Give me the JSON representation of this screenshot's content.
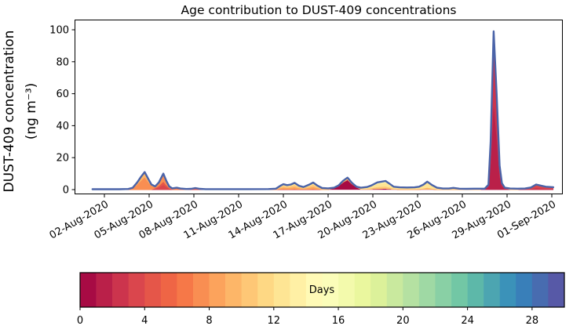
{
  "chart_data": {
    "type": "stacked_area",
    "title": "Age contribution to DUST-409 concentrations",
    "ylabel_line1": "DUST-409 concentration",
    "ylabel_line2": "(ng m⁻³)",
    "xlabel": "",
    "ylim": [
      0,
      100
    ],
    "y_ticks": [
      0,
      20,
      40,
      60,
      80,
      100
    ],
    "x_unit": "days since 01-Aug-2020 00:00",
    "x_ticks": [
      {
        "t": 1,
        "label": "02-Aug-2020"
      },
      {
        "t": 4,
        "label": "05-Aug-2020"
      },
      {
        "t": 7,
        "label": "08-Aug-2020"
      },
      {
        "t": 10,
        "label": "11-Aug-2020"
      },
      {
        "t": 13,
        "label": "14-Aug-2020"
      },
      {
        "t": 16,
        "label": "17-Aug-2020"
      },
      {
        "t": 19,
        "label": "20-Aug-2020"
      },
      {
        "t": 22,
        "label": "23-Aug-2020"
      },
      {
        "t": 25,
        "label": "26-Aug-2020"
      },
      {
        "t": 28,
        "label": "29-Aug-2020"
      },
      {
        "t": 31,
        "label": "01-Sep-2020"
      }
    ],
    "grid": false,
    "total_line_color": "#4a63a8",
    "value_unit": "ng m⁻³",
    "age_profiles": {
      "p_flat": {
        "9": 1.0
      },
      "p_peak1": {
        "7": 0.7,
        "9": 0.25,
        "12": 0.05
      },
      "p_peak2": {
        "3": 0.3,
        "4": 0.2,
        "7": 0.4,
        "9": 0.1
      },
      "p_aug7": {
        "6": 0.7,
        "9": 0.3
      },
      "p_aug8": {
        "4": 0.6,
        "6": 0.4
      },
      "p_mid": {
        "3": 0.08,
        "8": 0.32,
        "10": 0.3,
        "12": 0.3
      },
      "p_low": {
        "9": 0.5,
        "12": 0.5
      },
      "p_maroon": {
        "0": 0.82,
        "9": 0.12,
        "12": 0.06
      },
      "p_yellow": {
        "0": 0.12,
        "10": 0.25,
        "12": 0.43,
        "14": 0.2
      },
      "p_cream": {
        "0": 0.05,
        "9": 0.2,
        "12": 0.75
      },
      "p_tail": {
        "9": 0.3,
        "12": 0.7
      },
      "p_spike": {
        "1": 0.55,
        "2": 0.45
      },
      "p_last": {
        "2": 0.35,
        "3": 0.45,
        "5": 0.2
      }
    },
    "points": [
      [
        0.2,
        0.25,
        "p_flat"
      ],
      [
        1.0,
        0.25,
        "p_flat"
      ],
      [
        2.0,
        0.25,
        "p_flat"
      ],
      [
        2.6,
        0.4,
        "p_peak1"
      ],
      [
        2.9,
        1.2,
        "p_peak1"
      ],
      [
        3.2,
        4.5,
        "p_peak1"
      ],
      [
        3.45,
        8.0,
        "p_peak1"
      ],
      [
        3.7,
        11.0,
        "p_peak1"
      ],
      [
        3.95,
        6.5,
        "p_peak1"
      ],
      [
        4.15,
        3.2,
        "p_peak1"
      ],
      [
        4.4,
        2.0,
        "p_peak2"
      ],
      [
        4.65,
        4.5,
        "p_peak2"
      ],
      [
        4.95,
        10.0,
        "p_peak2"
      ],
      [
        5.15,
        5.5,
        "p_peak2"
      ],
      [
        5.35,
        2.0,
        "p_peak2"
      ],
      [
        5.55,
        0.8,
        "p_aug7"
      ],
      [
        5.85,
        1.2,
        "p_aug7"
      ],
      [
        6.1,
        0.7,
        "p_aug7"
      ],
      [
        6.5,
        0.4,
        "p_aug7"
      ],
      [
        6.8,
        0.5,
        "p_aug8"
      ],
      [
        7.1,
        1.0,
        "p_aug8"
      ],
      [
        7.4,
        0.5,
        "p_aug8"
      ],
      [
        7.8,
        0.3,
        "p_flat"
      ],
      [
        9.0,
        0.3,
        "p_flat"
      ],
      [
        10.5,
        0.3,
        "p_flat"
      ],
      [
        12.0,
        0.35,
        "p_mid"
      ],
      [
        12.5,
        0.6,
        "p_mid"
      ],
      [
        12.8,
        2.4,
        "p_mid"
      ],
      [
        13.0,
        3.4,
        "p_mid"
      ],
      [
        13.25,
        2.8,
        "p_mid"
      ],
      [
        13.5,
        3.2,
        "p_mid"
      ],
      [
        13.75,
        4.2,
        "p_mid"
      ],
      [
        14.05,
        2.4,
        "p_mid"
      ],
      [
        14.35,
        1.6,
        "p_mid"
      ],
      [
        14.7,
        3.0,
        "p_mid"
      ],
      [
        15.0,
        4.4,
        "p_mid"
      ],
      [
        15.3,
        2.4,
        "p_mid"
      ],
      [
        15.6,
        1.0,
        "p_low"
      ],
      [
        16.0,
        0.8,
        "p_low"
      ],
      [
        16.4,
        1.2,
        "p_maroon"
      ],
      [
        16.7,
        2.6,
        "p_maroon"
      ],
      [
        17.0,
        5.5,
        "p_maroon"
      ],
      [
        17.3,
        7.5,
        "p_maroon"
      ],
      [
        17.6,
        4.2,
        "p_maroon"
      ],
      [
        17.9,
        1.8,
        "p_maroon"
      ],
      [
        18.2,
        1.2,
        "p_yellow"
      ],
      [
        18.6,
        1.6,
        "p_yellow"
      ],
      [
        18.9,
        2.6,
        "p_yellow"
      ],
      [
        19.3,
        4.5,
        "p_yellow"
      ],
      [
        19.6,
        5.0,
        "p_yellow"
      ],
      [
        19.85,
        5.4,
        "p_yellow"
      ],
      [
        20.1,
        3.8,
        "p_yellow"
      ],
      [
        20.4,
        1.8,
        "p_yellow"
      ],
      [
        20.8,
        1.4,
        "p_cream"
      ],
      [
        21.3,
        1.3,
        "p_cream"
      ],
      [
        21.8,
        1.4,
        "p_cream"
      ],
      [
        22.1,
        1.8,
        "p_cream"
      ],
      [
        22.4,
        3.2,
        "p_cream"
      ],
      [
        22.65,
        5.0,
        "p_cream"
      ],
      [
        22.95,
        3.0,
        "p_cream"
      ],
      [
        23.3,
        1.2,
        "p_cream"
      ],
      [
        23.7,
        0.7,
        "p_tail"
      ],
      [
        24.1,
        0.7,
        "p_tail"
      ],
      [
        24.4,
        1.1,
        "p_tail"
      ],
      [
        24.8,
        0.6,
        "p_tail"
      ],
      [
        25.3,
        0.5,
        "p_tail"
      ],
      [
        25.8,
        0.6,
        "p_tail"
      ],
      [
        26.2,
        0.6,
        "p_tail"
      ],
      [
        26.5,
        0.6,
        "p_spike"
      ],
      [
        26.75,
        3.0,
        "p_spike"
      ],
      [
        26.9,
        30.0,
        "p_spike"
      ],
      [
        27.1,
        99.0,
        "p_spike"
      ],
      [
        27.3,
        60.0,
        "p_spike"
      ],
      [
        27.5,
        15.0,
        "p_spike"
      ],
      [
        27.65,
        4.0,
        "p_spike"
      ],
      [
        27.85,
        1.2,
        "p_spike"
      ],
      [
        28.2,
        0.7,
        "p_flat"
      ],
      [
        28.7,
        0.6,
        "p_flat"
      ],
      [
        29.2,
        0.7,
        "p_last"
      ],
      [
        29.6,
        1.3,
        "p_last"
      ],
      [
        29.95,
        3.2,
        "p_last"
      ],
      [
        30.3,
        2.4,
        "p_last"
      ],
      [
        30.6,
        1.8,
        "p_last"
      ],
      [
        30.9,
        1.6,
        "p_last"
      ],
      [
        31.1,
        1.5,
        "p_last"
      ]
    ],
    "colorbar": {
      "label": "Days",
      "min": 0,
      "max": 30,
      "segments": 30,
      "ticks": [
        0,
        4,
        8,
        12,
        16,
        20,
        24,
        28
      ],
      "colormap": "Spectral",
      "anchors": [
        "#9e0142",
        "#d53e4f",
        "#f46d43",
        "#fdae61",
        "#fee08b",
        "#ffffbf",
        "#e6f598",
        "#abdda4",
        "#66c2a5",
        "#3288bd",
        "#5e4fa2"
      ]
    }
  }
}
